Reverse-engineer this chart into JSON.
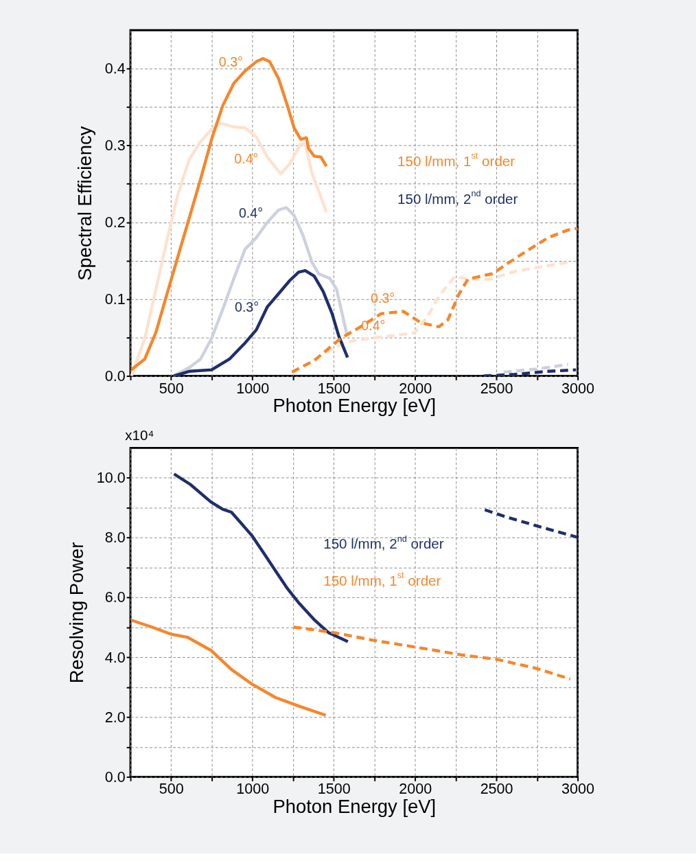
{
  "chart_data": [
    {
      "type": "line",
      "xlabel": "Photon Energy [eV]",
      "ylabel": "Spectral Efficiency",
      "xlim": [
        250,
        3000
      ],
      "ylim": [
        0,
        0.45
      ],
      "xticks": [
        {
          "value": 250,
          "label": null
        },
        500,
        {
          "value": 750,
          "label": null
        },
        1000,
        {
          "value": 1250,
          "label": null
        },
        1500,
        {
          "value": 1750,
          "label": null
        },
        2000,
        {
          "value": 2250,
          "label": null
        },
        2500,
        {
          "value": 2750,
          "label": null
        },
        3000
      ],
      "yticks": [
        {
          "value": 0,
          "label": "0.0"
        },
        {
          "value": 0.05,
          "label": null
        },
        0.1,
        {
          "value": 0.15,
          "label": null
        },
        0.2,
        {
          "value": 0.25,
          "label": null
        },
        0.3,
        {
          "value": 0.35,
          "label": null
        },
        0.4
      ],
      "grid": true,
      "series": [
        {
          "color": "#fde2cf",
          "x": [
            256,
            338,
            407,
            475,
            544,
            612,
            681,
            749,
            804,
            886,
            955,
            1024,
            1092,
            1174,
            1229,
            1297,
            1325,
            1366,
            1407,
            1455
          ],
          "values": [
            0,
            0.049,
            0.113,
            0.177,
            0.238,
            0.282,
            0.305,
            0.321,
            0.329,
            0.324,
            0.323,
            0.311,
            0.285,
            0.263,
            0.276,
            0.302,
            0.302,
            0.264,
            0.241,
            0.213
          ]
        },
        {
          "color": "#cdd1df",
          "x": [
            516,
            612,
            681,
            749,
            818,
            886,
            955,
            1024,
            1092,
            1161,
            1209,
            1256,
            1311,
            1366,
            1407,
            1476,
            1517,
            1580
          ],
          "values": [
            0,
            0.011,
            0.022,
            0.049,
            0.087,
            0.127,
            0.165,
            0.18,
            0.2,
            0.216,
            0.219,
            0.209,
            0.183,
            0.148,
            0.133,
            0.127,
            0.113,
            0.055
          ]
        },
        {
          "color": "#fde2cf",
          "line_style": "dashed",
          "x": [
            1450,
            1558,
            1654,
            1997,
            2079,
            2147,
            2243,
            2339,
            2463,
            2613,
            2750,
            2887,
            2948
          ],
          "values": [
            0.03,
            0.043,
            0.047,
            0.056,
            0.078,
            0.104,
            0.129,
            0.126,
            0.126,
            0.136,
            0.141,
            0.146,
            0.148
          ]
        },
        {
          "color": "#cdd1df",
          "line_style": "dashed",
          "x": [
            2545,
            2750,
            2942
          ],
          "values": [
            0.005,
            0.009,
            0.015
          ]
        },
        {
          "color": "#f7862a",
          "x": [
            256,
            338,
            407,
            475,
            544,
            612,
            681,
            749,
            818,
            886,
            955,
            1024,
            1065,
            1106,
            1161,
            1215,
            1256,
            1297,
            1332,
            1345,
            1380,
            1421,
            1455
          ],
          "values": [
            0.008,
            0.022,
            0.057,
            0.107,
            0.157,
            0.206,
            0.256,
            0.308,
            0.352,
            0.381,
            0.397,
            0.409,
            0.413,
            0.409,
            0.387,
            0.352,
            0.323,
            0.308,
            0.31,
            0.296,
            0.286,
            0.285,
            0.273
          ]
        },
        {
          "color": "#1f2f6b",
          "x": [
            516,
            612,
            749,
            859,
            955,
            1024,
            1092,
            1161,
            1229,
            1284,
            1325,
            1380,
            1435,
            1490,
            1531,
            1585
          ],
          "values": [
            0,
            0.006,
            0.008,
            0.022,
            0.043,
            0.06,
            0.09,
            0.107,
            0.124,
            0.135,
            0.137,
            0.13,
            0.11,
            0.081,
            0.052,
            0.024
          ]
        },
        {
          "color": "#f7862a",
          "line_style": "dashed",
          "x": [
            1243,
            1380,
            1544,
            1681,
            1791,
            1928,
            2038,
            2147,
            2202,
            2271,
            2326,
            2408,
            2476,
            2545,
            2682,
            2819,
            2942,
            3000
          ],
          "values": [
            0.005,
            0.02,
            0.049,
            0.066,
            0.081,
            0.084,
            0.069,
            0.064,
            0.073,
            0.107,
            0.126,
            0.13,
            0.133,
            0.143,
            0.162,
            0.18,
            0.19,
            0.192
          ]
        },
        {
          "color": "#1f2f6b",
          "line_style": "dashed",
          "x": [
            2422,
            2613,
            2819,
            2990
          ],
          "values": [
            0,
            0.002,
            0.006,
            0.008
          ]
        }
      ],
      "annotations": [
        {
          "text": "0.3°",
          "x": 962,
          "y": 0.395
        },
        {
          "text": "0.4°",
          "x": 1057,
          "y": 0.295
        },
        {
          "text": "0.4°",
          "x": 1085,
          "y": 0.198
        },
        {
          "text": "0.3°",
          "x": 1060,
          "y": 0.076
        },
        {
          "text": "0.3°",
          "x": 1896,
          "y": 0.087
        },
        {
          "text": "0.4°",
          "x": 1838,
          "y": 0.052
        },
        "150 l/mm, 1$^{st}$ order",
        "150 l/mm, 2$^{nd}$ order"
      ]
    },
    {
      "type": "line",
      "xlabel": "Photon Energy [eV]",
      "ylabel": "Resolving Power",
      "xlim": [
        250,
        3000
      ],
      "ylim": [
        0,
        11
      ],
      "xticks": [
        {
          "value": 250,
          "label": null
        },
        500,
        {
          "value": 750,
          "label": null
        },
        1000,
        {
          "value": 1250,
          "label": null
        },
        1500,
        {
          "value": 1750,
          "label": null
        },
        2000,
        {
          "value": 2250,
          "label": null
        },
        2500,
        {
          "value": 2750,
          "label": null
        },
        3000
      ],
      "yticks": [
        {
          "value": 0,
          "label": "0.0"
        },
        {
          "value": 1,
          "label": null
        },
        {
          "value": 2,
          "label": "2.0"
        },
        {
          "value": 3,
          "label": null
        },
        {
          "value": 4,
          "label": "4.0"
        },
        {
          "value": 5,
          "label": null
        },
        {
          "value": 6,
          "label": "6.0"
        },
        {
          "value": 7,
          "label": null
        },
        {
          "value": 8,
          "label": "8.0"
        },
        {
          "value": 9,
          "label": null
        },
        {
          "value": 10,
          "label": "10.0"
        }
      ],
      "grid": true,
      "series": [
        {
          "color": "#1f2f6b",
          "x": [
            518,
            618,
            745,
            817,
            871,
            926,
            998,
            1071,
            1143,
            1216,
            1288,
            1379,
            1469,
            1587
          ],
          "values": [
            10.13,
            9.78,
            9.19,
            8.95,
            8.85,
            8.51,
            8.06,
            7.47,
            6.88,
            6.29,
            5.8,
            5.26,
            4.82,
            4.52
          ]
        },
        {
          "color": "#f7862a",
          "x": [
            255,
            382,
            500,
            600,
            745,
            871,
            998,
            1143,
            1288,
            1451
          ],
          "values": [
            5.24,
            5.01,
            4.77,
            4.67,
            4.23,
            3.59,
            3.1,
            2.65,
            2.36,
            2.06
          ]
        },
        {
          "color": "#1f2f6b",
          "line_style": "dashed",
          "x": [
            2429,
            2556,
            2737,
            3000
          ],
          "values": [
            8.93,
            8.7,
            8.41,
            8.01
          ]
        },
        {
          "color": "#f7862a",
          "line_style": "dashed",
          "x": [
            1252,
            1505,
            1741,
            2013,
            2284,
            2502,
            2737,
            2955
          ],
          "values": [
            5.01,
            4.82,
            4.57,
            4.33,
            4.08,
            3.93,
            3.64,
            3.27
          ]
        }
      ],
      "annotations": [
        "x10⁴",
        "150 l/mm, 2$^{nd}$ order",
        "150 l/mm, 1$^{st}$ order"
      ]
    }
  ]
}
